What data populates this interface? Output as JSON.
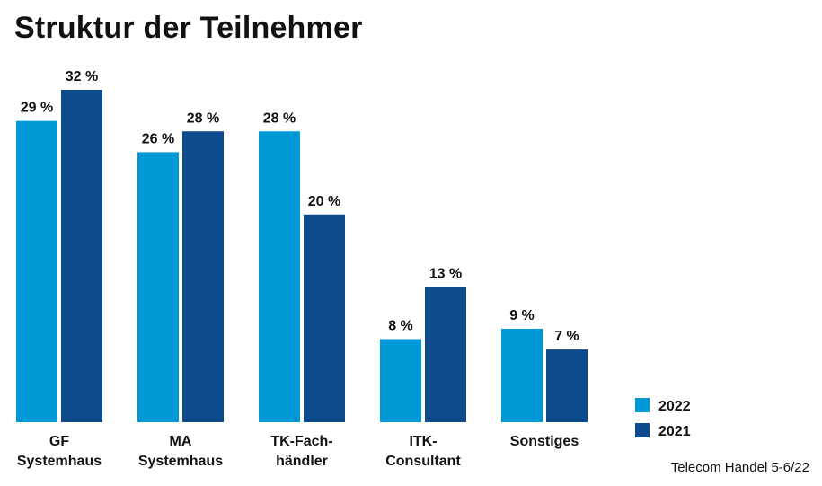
{
  "title": "Struktur der Teilnehmer",
  "source": "Telecom Handel 5-6/22",
  "colors": {
    "series_2022": "#0099d8",
    "series_2021": "#0d4b8c"
  },
  "chart_data": {
    "type": "bar",
    "title": "Struktur der Teilnehmer",
    "categories": [
      [
        "GF",
        "Systemhaus"
      ],
      [
        "MA",
        "Systemhaus"
      ],
      [
        "TK-Fach-",
        "händler"
      ],
      [
        "ITK-",
        "Consultant"
      ],
      [
        "Sonstiges"
      ]
    ],
    "series": [
      {
        "name": "2022",
        "values": [
          29,
          26,
          28,
          8,
          9
        ],
        "labels": [
          "29 %",
          "26 %",
          "28 %",
          "8 %",
          "9 %"
        ]
      },
      {
        "name": "2021",
        "values": [
          32,
          28,
          20,
          13,
          7
        ],
        "labels": [
          "32 %",
          "28 %",
          "20 %",
          "13 %",
          "7 %"
        ]
      }
    ],
    "ylim": [
      0,
      32
    ],
    "legend": "bottom-right",
    "grid": false
  }
}
